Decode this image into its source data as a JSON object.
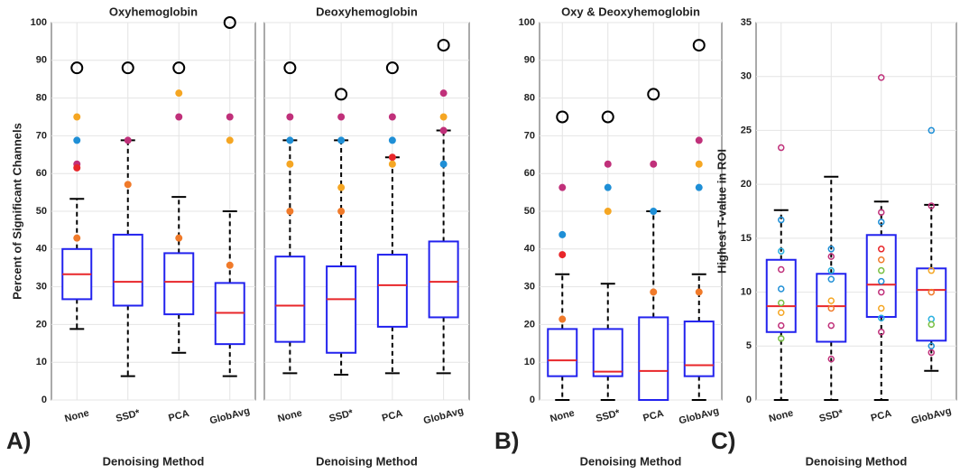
{
  "chart_data": [
    {
      "type": "box",
      "title": "Oxyhemoglobin",
      "ylabel": "Percent of Significant Channels",
      "xlabel": "Denoising Method",
      "panel_label": "A)",
      "categories": [
        "None",
        "SSD*",
        "PCA",
        "GlobAvg"
      ],
      "ylim": [
        0,
        100
      ],
      "yticks": [
        0,
        10,
        20,
        30,
        40,
        50,
        60,
        70,
        80,
        90,
        100
      ],
      "tick_labels": true,
      "grid": true,
      "point_style": "filled",
      "boxes": [
        {
          "min": 18.8,
          "q1": 26.7,
          "median": 33.3,
          "q3": 40,
          "max": 53.3
        },
        {
          "min": 6.3,
          "q1": 25,
          "median": 31.3,
          "q3": 43.8,
          "max": 68.8
        },
        {
          "min": 12.5,
          "q1": 22.7,
          "median": 31.3,
          "q3": 38.9,
          "max": 53.8
        },
        {
          "min": 6.3,
          "q1": 14.8,
          "median": 23.1,
          "q3": 31,
          "max": 50
        }
      ],
      "outliers": [
        [
          75,
          68.8,
          62.5,
          61.5,
          42.9
        ],
        [
          68.8,
          57.1
        ],
        [
          81.3,
          75,
          42.9
        ],
        [
          75,
          68.8,
          35.7
        ]
      ],
      "outlier_colors": [
        [
          "#f5a623",
          "#1f8fd6",
          "#c0307a",
          "#e8262a",
          "#f07a2a"
        ],
        [
          "#c0307a",
          "#f07a2a"
        ],
        [
          "#f5a623",
          "#c0307a",
          "#f07a2a"
        ],
        [
          "#c0307a",
          "#f5a623",
          "#f07a2a"
        ]
      ],
      "circles": [
        88,
        88,
        88,
        100
      ]
    },
    {
      "type": "box",
      "title": "Deoxyhemoglobin",
      "xlabel": "Denoising Method",
      "categories": [
        "None",
        "SSD*",
        "PCA",
        "GlobAvg"
      ],
      "ylim": [
        0,
        100
      ],
      "yticks": [
        0,
        10,
        20,
        30,
        40,
        50,
        60,
        70,
        80,
        90,
        100
      ],
      "tick_labels": false,
      "grid": true,
      "point_style": "filled",
      "boxes": [
        {
          "min": 7.1,
          "q1": 15.4,
          "median": 25,
          "q3": 38,
          "max": 68.8
        },
        {
          "min": 6.7,
          "q1": 12.5,
          "median": 26.7,
          "q3": 35.4,
          "max": 68.8
        },
        {
          "min": 7.1,
          "q1": 19.4,
          "median": 30.4,
          "q3": 38.5,
          "max": 64.3
        },
        {
          "min": 7.1,
          "q1": 21.9,
          "median": 31.3,
          "q3": 42,
          "max": 71.4
        }
      ],
      "outliers": [
        [
          75,
          68.8,
          62.5,
          50
        ],
        [
          75,
          68.8,
          56.3,
          50
        ],
        [
          75,
          68.8,
          64.3,
          62.5
        ],
        [
          81.3,
          75,
          71.4,
          62.5
        ]
      ],
      "outlier_colors": [
        [
          "#c0307a",
          "#1f8fd6",
          "#f5a623",
          "#f07a2a"
        ],
        [
          "#c0307a",
          "#1f8fd6",
          "#f5a623",
          "#f07a2a"
        ],
        [
          "#c0307a",
          "#1f8fd6",
          "#e8262a",
          "#f5a623"
        ],
        [
          "#c0307a",
          "#f5a623",
          "#c0307a",
          "#1f8fd6"
        ]
      ],
      "circles": [
        88,
        81,
        88,
        94
      ]
    },
    {
      "type": "box",
      "title": "Oxy & Deoxyhemoglobin",
      "xlabel": "Denoising Method",
      "panel_label": "B)",
      "categories": [
        "None",
        "SSD*",
        "PCA",
        "GlobAvg"
      ],
      "ylim": [
        0,
        100
      ],
      "yticks": [
        0,
        10,
        20,
        30,
        40,
        50,
        60,
        70,
        80,
        90,
        100
      ],
      "tick_labels": true,
      "grid": true,
      "point_style": "filled",
      "boxes": [
        {
          "min": 0,
          "q1": 6.3,
          "median": 10.5,
          "q3": 18.8,
          "max": 33.3
        },
        {
          "min": 0,
          "q1": 6.3,
          "median": 7.5,
          "q3": 18.8,
          "max": 30.8
        },
        {
          "min": 0,
          "q1": 0,
          "median": 7.7,
          "q3": 21.9,
          "max": 50
        },
        {
          "min": 0,
          "q1": 6.3,
          "median": 9.2,
          "q3": 20.8,
          "max": 33.3
        }
      ],
      "outliers": [
        [
          56.3,
          43.8,
          38.5,
          21.4
        ],
        [
          62.5,
          56.3,
          50
        ],
        [
          62.5,
          50,
          28.6
        ],
        [
          68.8,
          62.5,
          56.3,
          28.6
        ]
      ],
      "outlier_colors": [
        [
          "#c0307a",
          "#1f8fd6",
          "#e8262a",
          "#f07a2a"
        ],
        [
          "#c0307a",
          "#1f8fd6",
          "#f5a623"
        ],
        [
          "#c0307a",
          "#1f8fd6",
          "#f07a2a"
        ],
        [
          "#c0307a",
          "#f5a623",
          "#1f8fd6",
          "#f07a2a"
        ]
      ],
      "circles": [
        75,
        75,
        81,
        94
      ]
    },
    {
      "type": "box",
      "ylabel": "Highest T-value in ROI",
      "xlabel": "Denoising Method",
      "panel_label": "C)",
      "categories": [
        "None",
        "SSD*",
        "PCA",
        "GlobAvg"
      ],
      "ylim": [
        0,
        35
      ],
      "yticks": [
        0,
        5,
        10,
        15,
        20,
        25,
        30,
        35
      ],
      "tick_labels": true,
      "grid": true,
      "point_style": "open",
      "boxes": [
        {
          "min": 0,
          "q1": 6.3,
          "median": 8.7,
          "q3": 13,
          "max": 17.6
        },
        {
          "min": 0,
          "q1": 5.4,
          "median": 8.7,
          "q3": 11.7,
          "max": 20.7
        },
        {
          "min": 0,
          "q1": 7.7,
          "median": 10.7,
          "q3": 15.3,
          "max": 18.4
        },
        {
          "min": 2.7,
          "q1": 5.5,
          "median": 10.2,
          "q3": 12.2,
          "max": 18.1
        }
      ],
      "outliers": [
        [
          23.4,
          16.7,
          13.8,
          12.1,
          10.3,
          9,
          8.1,
          6.9,
          5.7
        ],
        [
          14,
          13.3,
          12,
          11.2,
          9.2,
          8.5,
          6.9,
          3.8
        ],
        [
          29.9,
          17.4,
          16.5,
          14,
          13,
          12,
          11,
          10,
          8.5,
          7.6,
          6.3
        ],
        [
          25,
          18,
          12,
          10,
          7.5,
          7,
          5,
          4.4
        ]
      ],
      "outlier_colors": [
        [
          "#c0307a",
          "#1f8fd6",
          "#2ab0e0",
          "#c0307a",
          "#1f8fd6",
          "#7ac043",
          "#f5a623",
          "#c0307a",
          "#7ac043"
        ],
        [
          "#1f8fd6",
          "#c0307a",
          "#2ab0e0",
          "#1f8fd6",
          "#f5a623",
          "#f07a2a",
          "#c0307a",
          "#c0307a"
        ],
        [
          "#c0307a",
          "#c0307a",
          "#1f8fd6",
          "#e8262a",
          "#f07a2a",
          "#7ac043",
          "#1f8fd6",
          "#c0307a",
          "#f5a623",
          "#2ab0e0",
          "#c0307a"
        ],
        [
          "#1f8fd6",
          "#c0307a",
          "#f5a623",
          "#f07a2a",
          "#2ab0e0",
          "#7ac043",
          "#1f8fd6",
          "#c0307a"
        ]
      ],
      "circles": []
    }
  ]
}
